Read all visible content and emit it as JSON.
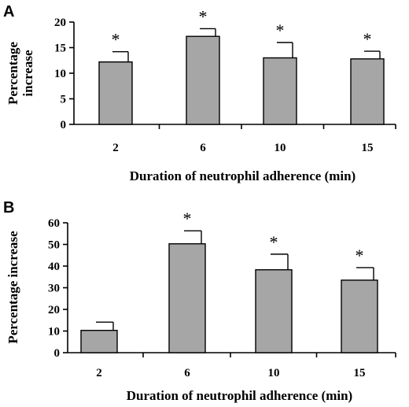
{
  "chart_data": [
    {
      "type": "bar",
      "panel": "A",
      "categories": [
        "2",
        "6",
        "10",
        "15"
      ],
      "values": [
        12.2,
        17.2,
        13.0,
        12.8
      ],
      "errors": [
        2.0,
        1.5,
        3.0,
        1.5
      ],
      "significance": [
        "*",
        "*",
        "*",
        "*"
      ],
      "xlabel": "Duration of neutrophil adherence (min)",
      "ylabel": [
        "Percentage",
        "increase"
      ],
      "ylim": [
        0,
        20
      ],
      "yticks": [
        "0",
        "5",
        "10",
        "15",
        "20"
      ],
      "grid": false
    },
    {
      "type": "bar",
      "panel": "B",
      "categories": [
        "2",
        "6",
        "10",
        "15"
      ],
      "values": [
        10.3,
        50.3,
        38.3,
        33.5
      ],
      "errors": [
        3.8,
        6.0,
        7.2,
        5.8
      ],
      "significance": [
        "",
        "*",
        "*",
        "*"
      ],
      "xlabel": "Duration of neutrophil adherence (min)",
      "ylabel": [
        "Percentage increase"
      ],
      "ylim": [
        0,
        60
      ],
      "yticks": [
        "0",
        "10",
        "20",
        "30",
        "40",
        "50",
        "60"
      ],
      "grid": false
    }
  ]
}
